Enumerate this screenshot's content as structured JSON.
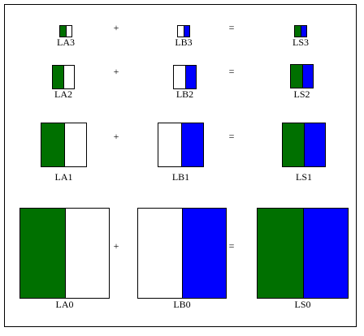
{
  "colors": {
    "a": "#007000",
    "b": "#0000ff",
    "empty": "#ffffff"
  },
  "operators": {
    "plus": "+",
    "equals": "="
  },
  "rows": [
    {
      "A": {
        "label": "LA3",
        "left": "a",
        "right": "empty"
      },
      "B": {
        "label": "LB3",
        "left": "empty",
        "right": "b"
      },
      "S": {
        "label": "LS3",
        "left": "a",
        "right": "b"
      }
    },
    {
      "A": {
        "label": "LA2",
        "left": "a",
        "right": "empty"
      },
      "B": {
        "label": "LB2",
        "left": "empty",
        "right": "b"
      },
      "S": {
        "label": "LS2",
        "left": "a",
        "right": "b"
      }
    },
    {
      "A": {
        "label": "LA1",
        "left": "a",
        "right": "empty"
      },
      "B": {
        "label": "LB1",
        "left": "empty",
        "right": "b"
      },
      "S": {
        "label": "LS1",
        "left": "a",
        "right": "b"
      }
    },
    {
      "A": {
        "label": "LA0",
        "left": "a",
        "right": "empty"
      },
      "B": {
        "label": "LB0",
        "left": "empty",
        "right": "b"
      },
      "S": {
        "label": "LS0",
        "left": "a",
        "right": "b"
      }
    }
  ]
}
